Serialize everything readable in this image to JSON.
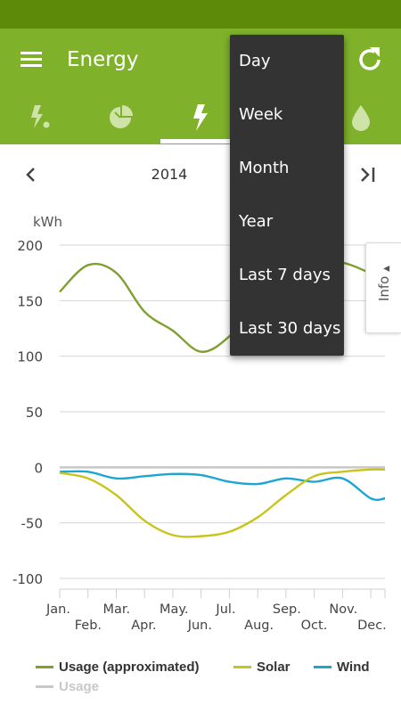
{
  "app": {
    "title": "Energy",
    "colors": {
      "status_bar": "#5e8a0a",
      "app_bar": "#7fb12b",
      "usage_approx": "#7f9f2f",
      "solar": "#c9c41c",
      "wind": "#1ca6d2",
      "usage": "#c8c8c8",
      "menu_background": "#333333"
    }
  },
  "toolbar": {
    "menu_icon": "hamburger-icon",
    "refresh_icon": "refresh-icon"
  },
  "tabs": [
    {
      "icon": "power-usage-icon",
      "selected": false
    },
    {
      "icon": "pie-chart-icon",
      "selected": false
    },
    {
      "icon": "lightning-icon",
      "selected": true
    },
    {
      "icon": "temperature-icon",
      "selected": false
    },
    {
      "icon": "water-drop-icon",
      "selected": false
    }
  ],
  "period": {
    "label": "2014",
    "prev_icon": "chevron-left-icon",
    "last_icon": "skip-to-end-icon"
  },
  "dropdown": {
    "items": [
      "Day",
      "Week",
      "Month",
      "Year",
      "Last 7 days",
      "Last 30 days"
    ]
  },
  "info_tab": {
    "label": "Info",
    "icon": "triangle-up-icon"
  },
  "chart_data": {
    "type": "line",
    "title": "",
    "ylabel": "kWh",
    "xlabel": "",
    "ylim": [
      -100,
      200
    ],
    "yticks": [
      200,
      150,
      100,
      50,
      0,
      -50,
      -100
    ],
    "ytick_labels": [
      "200",
      "150",
      "100",
      "50",
      "0",
      "-50",
      "-100"
    ],
    "grid": true,
    "categories": [
      "Jan.",
      "Feb.",
      "Mar.",
      "Apr.",
      "May.",
      "Jun.",
      "Jul.",
      "Aug.",
      "Sep.",
      "Oct.",
      "Nov.",
      "Dec."
    ],
    "series": [
      {
        "name": "Usage (approximated)",
        "color": "#7f9f2f",
        "values": [
          158,
          182,
          175,
          140,
          123,
          104,
          118,
          150,
          168,
          180,
          184,
          175
        ]
      },
      {
        "name": "Solar",
        "color": "#c9c41c",
        "values": [
          -5,
          -10,
          -25,
          -48,
          -61,
          -62,
          -58,
          -45,
          -25,
          -8,
          -4,
          -2
        ]
      },
      {
        "name": "Wind",
        "color": "#1ca6d2",
        "values": [
          -4,
          -4,
          -10,
          -8,
          -6,
          -7,
          -13,
          -15,
          -10,
          -13,
          -10,
          -28
        ]
      },
      {
        "name": "Usage",
        "color": "#c8c8c8",
        "values": [
          0,
          0,
          0,
          0,
          0,
          0,
          0,
          0,
          0,
          0,
          0,
          0
        ]
      }
    ],
    "legend_position": "bottom"
  }
}
